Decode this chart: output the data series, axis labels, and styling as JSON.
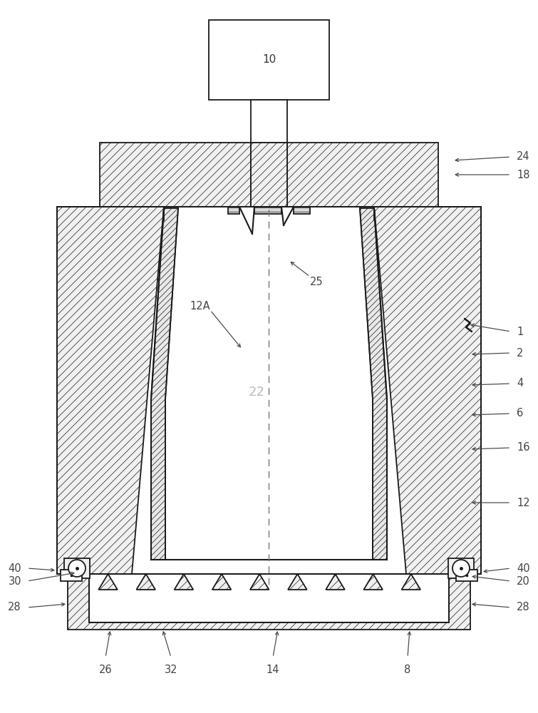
{
  "bg": "#ffffff",
  "lc": "#1a1a1a",
  "fc_hatch": "#f0f0f0",
  "fc_white": "#ffffff",
  "label_color": "#555555",
  "figsize": [
    7.55,
    10.0
  ],
  "dpi": 100,
  "lw": 1.3,
  "hatch_lw": 0.5
}
